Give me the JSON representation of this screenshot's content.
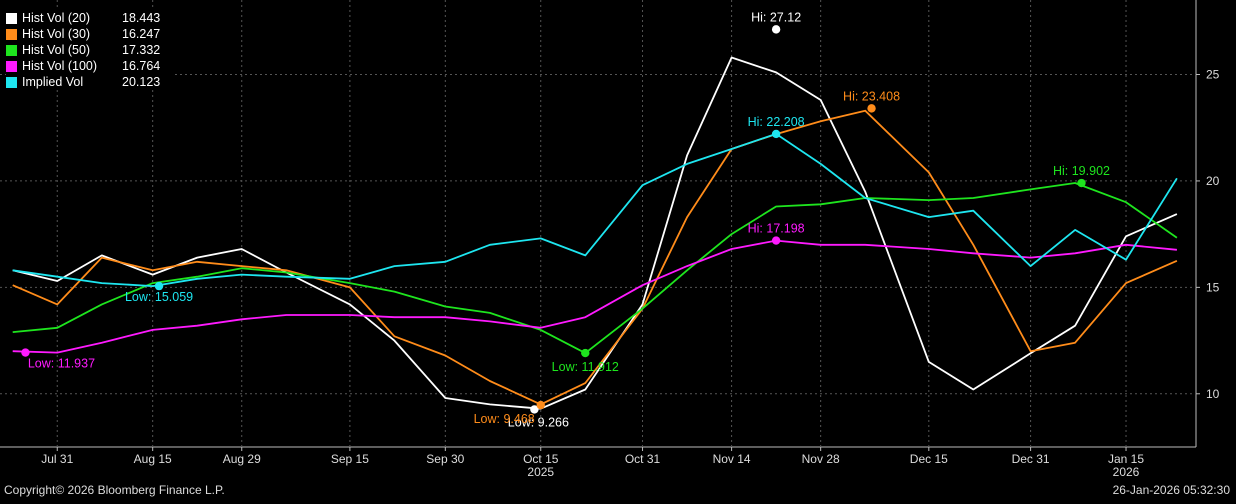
{
  "footer": {
    "copyright": "Copyright© 2026 Bloomberg Finance L.P.",
    "timestamp": "26-Jan-2026 05:32:30"
  },
  "legend": {
    "items": [
      {
        "name": "Hist Vol (20)",
        "value": "18.443",
        "color": "#ffffff"
      },
      {
        "name": "Hist Vol (30)",
        "value": "16.247",
        "color": "#ff8c1a"
      },
      {
        "name": "Hist Vol (50)",
        "value": "17.332",
        "color": "#1ee51e"
      },
      {
        "name": "Hist Vol (100)",
        "value": "16.764",
        "color": "#ff1aff"
      },
      {
        "name": "Implied Vol",
        "value": "20.123",
        "color": "#1ee6f0"
      }
    ]
  },
  "chart_data": {
    "type": "line",
    "title": "",
    "ylim": [
      7.5,
      28.5
    ],
    "yticks": [
      10,
      15,
      20,
      25
    ],
    "grid": true,
    "legend_position": "top-left",
    "x": [
      "2025-07-24",
      "2025-07-31",
      "2025-08-07",
      "2025-08-15",
      "2025-08-22",
      "2025-08-29",
      "2025-09-05",
      "2025-09-15",
      "2025-09-22",
      "2025-09-30",
      "2025-10-07",
      "2025-10-15",
      "2025-10-22",
      "2025-10-31",
      "2025-11-07",
      "2025-11-14",
      "2025-11-21",
      "2025-11-28",
      "2025-12-05",
      "2025-12-15",
      "2025-12-22",
      "2025-12-31",
      "2026-01-07",
      "2026-01-15",
      "2026-01-23"
    ],
    "xticks": [
      {
        "date": "2025-07-31",
        "label": "Jul 31"
      },
      {
        "date": "2025-08-15",
        "label": "Aug 15"
      },
      {
        "date": "2025-08-29",
        "label": "Aug 29"
      },
      {
        "date": "2025-09-15",
        "label": "Sep 15"
      },
      {
        "date": "2025-09-30",
        "label": "Sep 30"
      },
      {
        "date": "2025-10-15",
        "label": "Oct 15"
      },
      {
        "date": "2025-10-31",
        "label": "Oct 31"
      },
      {
        "date": "2025-11-14",
        "label": "Nov 14"
      },
      {
        "date": "2025-11-28",
        "label": "Nov 28"
      },
      {
        "date": "2025-12-15",
        "label": "Dec 15"
      },
      {
        "date": "2025-12-31",
        "label": "Dec 31"
      },
      {
        "date": "2026-01-15",
        "label": "Jan 15"
      }
    ],
    "year_labels": [
      {
        "date": "2025-10-15",
        "label": "2025"
      },
      {
        "date": "2026-01-15",
        "label": "2026"
      }
    ],
    "series": [
      {
        "name": "Hist Vol (20)",
        "color": "#ffffff",
        "values": [
          15.8,
          15.3,
          16.5,
          15.6,
          16.4,
          16.8,
          15.7,
          14.2,
          12.5,
          9.8,
          9.5,
          9.3,
          10.2,
          14.2,
          21.2,
          25.8,
          25.1,
          23.8,
          19.5,
          11.5,
          10.2,
          11.9,
          13.2,
          17.4,
          18.443
        ]
      },
      {
        "name": "Hist Vol (30)",
        "color": "#ff8c1a",
        "values": [
          15.1,
          14.2,
          16.4,
          15.8,
          16.2,
          16.0,
          15.8,
          15.0,
          12.7,
          11.8,
          10.6,
          9.5,
          10.5,
          14.0,
          18.3,
          21.5,
          22.2,
          22.8,
          23.3,
          20.4,
          17.0,
          12.0,
          12.4,
          15.2,
          16.247
        ]
      },
      {
        "name": "Hist Vol (50)",
        "color": "#1ee51e",
        "values": [
          12.9,
          13.1,
          14.2,
          15.2,
          15.5,
          15.9,
          15.7,
          15.2,
          14.8,
          14.1,
          13.8,
          13.0,
          11.912,
          14.0,
          15.8,
          17.5,
          18.8,
          18.9,
          19.2,
          19.1,
          19.2,
          19.6,
          19.902,
          19.0,
          17.332
        ]
      },
      {
        "name": "Hist Vol (100)",
        "color": "#ff1aff",
        "values": [
          12.0,
          11.937,
          12.4,
          13.0,
          13.2,
          13.5,
          13.7,
          13.7,
          13.6,
          13.6,
          13.4,
          13.1,
          13.6,
          15.1,
          16.0,
          16.8,
          17.198,
          17.0,
          17.0,
          16.8,
          16.6,
          16.4,
          16.6,
          17.0,
          16.764
        ]
      },
      {
        "name": "Implied Vol",
        "color": "#1ee6f0",
        "values": [
          15.8,
          15.5,
          15.2,
          15.059,
          15.4,
          15.6,
          15.5,
          15.4,
          16.0,
          16.2,
          17.0,
          17.3,
          16.5,
          19.8,
          20.8,
          21.5,
          22.208,
          20.8,
          19.2,
          18.3,
          18.6,
          16.0,
          17.7,
          16.3,
          20.123
        ]
      }
    ],
    "annotations": [
      {
        "series": "Hist Vol (20)",
        "type": "high",
        "label": "Hi: 27.12",
        "date": "2025-11-21",
        "value": 27.12
      },
      {
        "series": "Hist Vol (20)",
        "type": "low",
        "label": "Low: 9.266",
        "date": "2025-10-14",
        "value": 9.266
      },
      {
        "series": "Hist Vol (30)",
        "type": "high",
        "label": "Hi: 23.408",
        "date": "2025-12-06",
        "value": 23.408
      },
      {
        "series": "Hist Vol (30)",
        "type": "low",
        "label": "Low: 9.468",
        "date": "2025-10-15",
        "value": 9.468
      },
      {
        "series": "Hist Vol (50)",
        "type": "high",
        "label": "Hi: 19.902",
        "date": "2026-01-08",
        "value": 19.902
      },
      {
        "series": "Hist Vol (50)",
        "type": "low",
        "label": "Low: 11.912",
        "date": "2025-10-22",
        "value": 11.912
      },
      {
        "series": "Hist Vol (100)",
        "type": "high",
        "label": "Hi: 17.198",
        "date": "2025-11-21",
        "value": 17.198
      },
      {
        "series": "Hist Vol (100)",
        "type": "low",
        "label": "Low: 11.937",
        "date": "2025-07-26",
        "value": 11.937
      },
      {
        "series": "Implied Vol",
        "type": "high",
        "label": "Hi: 22.208",
        "date": "2025-11-21",
        "value": 22.208
      },
      {
        "series": "Implied Vol",
        "type": "low",
        "label": "Low: 15.059",
        "date": "2025-08-16",
        "value": 15.059
      }
    ]
  }
}
